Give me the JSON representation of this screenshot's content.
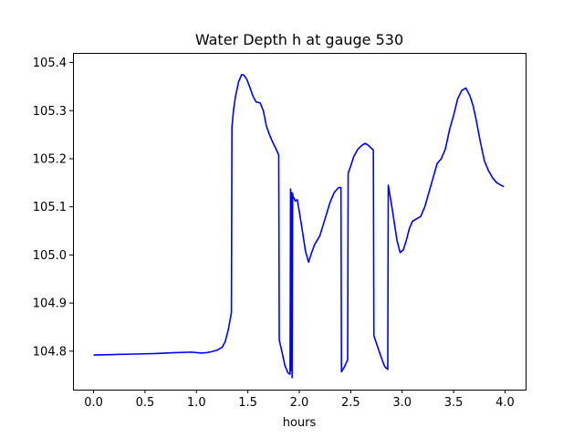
{
  "chart_data": {
    "type": "line",
    "title": "Water Depth h at gauge 530",
    "xlabel": "hours",
    "ylabel": "",
    "xlim": [
      -0.2,
      4.2
    ],
    "ylim": [
      104.72,
      105.42
    ],
    "xticks": [
      0.0,
      0.5,
      1.0,
      1.5,
      2.0,
      2.5,
      3.0,
      3.5,
      4.0
    ],
    "xtick_labels": [
      "0.0",
      "0.5",
      "1.0",
      "1.5",
      "2.0",
      "2.5",
      "3.0",
      "3.5",
      "4.0"
    ],
    "yticks": [
      104.8,
      104.9,
      105.0,
      105.1,
      105.2,
      105.3,
      105.4
    ],
    "ytick_labels": [
      "104.8",
      "104.9",
      "105.0",
      "105.1",
      "105.2",
      "105.3",
      "105.4"
    ],
    "grid": false,
    "series": [
      {
        "color": "#0000ff",
        "x": [
          0.0,
          0.2,
          0.4,
          0.6,
          0.8,
          0.95,
          1.0,
          1.05,
          1.1,
          1.15,
          1.2,
          1.25,
          1.28,
          1.31,
          1.34,
          1.345,
          1.36,
          1.38,
          1.41,
          1.44,
          1.46,
          1.49,
          1.52,
          1.55,
          1.58,
          1.62,
          1.65,
          1.68,
          1.71,
          1.74,
          1.77,
          1.8,
          1.805,
          1.83,
          1.86,
          1.89,
          1.91,
          1.915,
          1.92,
          1.925,
          1.93,
          1.935,
          1.94,
          1.95,
          1.96,
          1.98,
          2.0,
          2.03,
          2.06,
          2.09,
          2.12,
          2.15,
          2.2,
          2.25,
          2.3,
          2.34,
          2.38,
          2.405,
          2.41,
          2.44,
          2.47,
          2.475,
          2.5,
          2.53,
          2.57,
          2.61,
          2.64,
          2.67,
          2.7,
          2.72,
          2.725,
          2.76,
          2.8,
          2.83,
          2.86,
          2.865,
          2.9,
          2.95,
          2.98,
          3.01,
          3.04,
          3.07,
          3.1,
          3.14,
          3.18,
          3.22,
          3.26,
          3.3,
          3.34,
          3.38,
          3.42,
          3.46,
          3.5,
          3.54,
          3.58,
          3.62,
          3.66,
          3.69,
          3.72,
          3.76,
          3.8,
          3.84,
          3.88,
          3.92,
          3.96,
          3.99
        ],
        "y": [
          104.792,
          104.793,
          104.794,
          104.795,
          104.797,
          104.798,
          104.797,
          104.796,
          104.797,
          104.799,
          104.802,
          104.808,
          104.82,
          104.845,
          104.88,
          105.265,
          105.3,
          105.33,
          105.36,
          105.375,
          105.374,
          105.365,
          105.348,
          105.33,
          105.318,
          105.316,
          105.3,
          105.268,
          105.25,
          105.235,
          105.222,
          105.208,
          104.823,
          104.8,
          104.77,
          104.755,
          104.752,
          105.137,
          104.76,
          105.13,
          104.745,
          105.128,
          105.12,
          105.118,
          105.112,
          105.115,
          105.09,
          105.05,
          105.008,
          104.985,
          105.005,
          105.022,
          105.04,
          105.075,
          105.11,
          105.13,
          105.14,
          105.14,
          104.757,
          104.768,
          104.782,
          105.17,
          105.185,
          105.205,
          105.22,
          105.228,
          105.232,
          105.228,
          105.222,
          105.218,
          104.832,
          104.81,
          104.785,
          104.768,
          104.762,
          105.145,
          105.1,
          105.03,
          105.005,
          105.01,
          105.03,
          105.055,
          105.07,
          105.075,
          105.08,
          105.1,
          105.13,
          105.16,
          105.19,
          105.2,
          105.22,
          105.26,
          105.29,
          105.325,
          105.342,
          105.347,
          105.33,
          105.31,
          105.28,
          105.235,
          105.195,
          105.175,
          105.16,
          105.15,
          105.145,
          105.142
        ]
      }
    ]
  }
}
